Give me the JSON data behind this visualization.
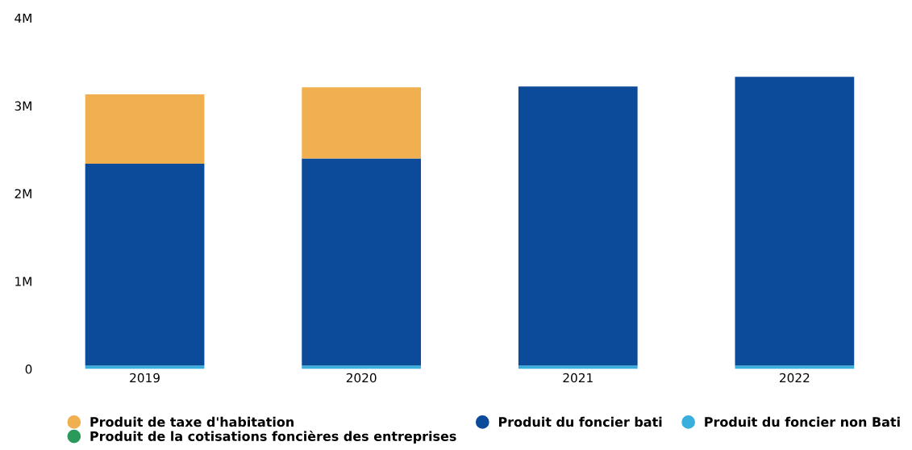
{
  "chart_data": {
    "type": "bar",
    "stacked": true,
    "categories": [
      "2019",
      "2020",
      "2021",
      "2022"
    ],
    "series": [
      {
        "name": "Produit du foncier non Bati",
        "color": "#3aaedc",
        "values": [
          0.04,
          0.04,
          0.04,
          0.04
        ]
      },
      {
        "name": "Produit de la cotisations foncières des entreprises",
        "color": "#2a9a5a",
        "values": [
          null,
          null,
          null,
          null
        ]
      },
      {
        "name": "Produit du foncier bati",
        "color": "#0c4a9a",
        "values": [
          2.3,
          2.36,
          3.18,
          3.29
        ]
      },
      {
        "name": "Produit de taxe d'habitation",
        "color": "#f0b050",
        "values": [
          0.79,
          0.81,
          0,
          0
        ]
      }
    ],
    "ylim": [
      0,
      4
    ],
    "yticks": [
      {
        "value": 0,
        "label": "0"
      },
      {
        "value": 1,
        "label": "1M"
      },
      {
        "value": 2,
        "label": "2M"
      },
      {
        "value": 3,
        "label": "3M"
      },
      {
        "value": 4,
        "label": "4M"
      }
    ],
    "grid": false,
    "legend": "bottom"
  }
}
